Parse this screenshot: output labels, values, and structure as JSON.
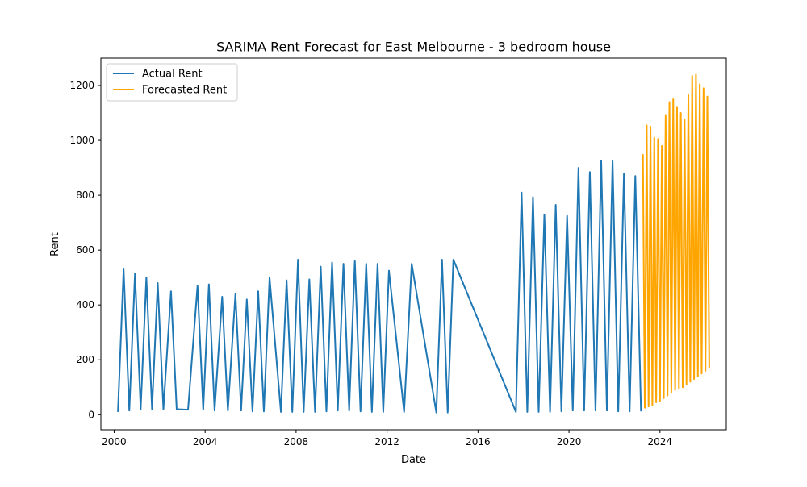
{
  "chart_data": {
    "type": "line",
    "title": "SARIMA Rent Forecast for East Melbourne - 3 bedroom house",
    "xlabel": "Date",
    "ylabel": "Rent",
    "xlim": [
      "1999-06",
      "2026-12"
    ],
    "ylim": [
      -55,
      1300
    ],
    "x_ticks": [
      "2000",
      "2004",
      "2008",
      "2012",
      "2016",
      "2020",
      "2024"
    ],
    "y_ticks": [
      0,
      200,
      400,
      600,
      800,
      1000,
      1200
    ],
    "grid": false,
    "legend": {
      "placement": "top-left",
      "entries": [
        "Actual Rent",
        "Forecasted Rent"
      ]
    },
    "colors": {
      "Actual Rent": "#1f77b4",
      "Forecasted Rent": "#ffa500"
    },
    "series": [
      {
        "name": "Actual Rent",
        "points": [
          [
            "2000-03",
            10
          ],
          [
            "2000-06",
            530
          ],
          [
            "2000-09",
            15
          ],
          [
            "2000-12",
            515
          ],
          [
            "2001-03",
            20
          ],
          [
            "2001-06",
            500
          ],
          [
            "2001-09",
            20
          ],
          [
            "2001-12",
            480
          ],
          [
            "2002-03",
            20
          ],
          [
            "2002-07",
            450
          ],
          [
            "2002-10",
            20
          ],
          [
            "2003-04",
            18
          ],
          [
            "2003-09",
            470
          ],
          [
            "2003-12",
            18
          ],
          [
            "2004-03",
            475
          ],
          [
            "2004-06",
            15
          ],
          [
            "2004-10",
            430
          ],
          [
            "2005-01",
            15
          ],
          [
            "2005-05",
            440
          ],
          [
            "2005-08",
            15
          ],
          [
            "2005-11",
            420
          ],
          [
            "2006-02",
            12
          ],
          [
            "2006-05",
            450
          ],
          [
            "2006-08",
            12
          ],
          [
            "2006-11",
            500
          ],
          [
            "2007-05",
            10
          ],
          [
            "2007-08",
            490
          ],
          [
            "2007-11",
            10
          ],
          [
            "2008-02",
            565
          ],
          [
            "2008-05",
            10
          ],
          [
            "2008-08",
            493
          ],
          [
            "2008-11",
            10
          ],
          [
            "2009-02",
            540
          ],
          [
            "2009-05",
            12
          ],
          [
            "2009-08",
            555
          ],
          [
            "2009-11",
            15
          ],
          [
            "2010-02",
            550
          ],
          [
            "2010-05",
            15
          ],
          [
            "2010-08",
            560
          ],
          [
            "2010-11",
            12
          ],
          [
            "2011-02",
            550
          ],
          [
            "2011-05",
            10
          ],
          [
            "2011-08",
            550
          ],
          [
            "2011-11",
            10
          ],
          [
            "2012-02",
            525
          ],
          [
            "2012-10",
            10
          ],
          [
            "2013-02",
            550
          ],
          [
            "2014-03",
            8
          ],
          [
            "2014-06",
            565
          ],
          [
            "2014-09",
            8
          ],
          [
            "2014-12",
            565
          ],
          [
            "2017-09",
            10
          ],
          [
            "2017-12",
            810
          ],
          [
            "2018-03",
            10
          ],
          [
            "2018-06",
            793
          ],
          [
            "2018-09",
            10
          ],
          [
            "2018-12",
            730
          ],
          [
            "2019-03",
            10
          ],
          [
            "2019-06",
            765
          ],
          [
            "2019-09",
            12
          ],
          [
            "2019-12",
            725
          ],
          [
            "2020-03",
            15
          ],
          [
            "2020-06",
            900
          ],
          [
            "2020-09",
            15
          ],
          [
            "2020-12",
            885
          ],
          [
            "2021-03",
            15
          ],
          [
            "2021-06",
            925
          ],
          [
            "2021-09",
            15
          ],
          [
            "2021-12",
            925
          ],
          [
            "2022-03",
            12
          ],
          [
            "2022-06",
            880
          ],
          [
            "2022-09",
            12
          ],
          [
            "2022-12",
            870
          ],
          [
            "2023-03",
            12
          ]
        ]
      },
      {
        "name": "Forecasted Rent",
        "points": [
          [
            "2023-04",
            950
          ],
          [
            "2023-05",
            25
          ],
          [
            "2023-06",
            1055
          ],
          [
            "2023-07",
            30
          ],
          [
            "2023-08",
            1050
          ],
          [
            "2023-09",
            35
          ],
          [
            "2023-10",
            1010
          ],
          [
            "2023-11",
            45
          ],
          [
            "2023-12",
            1005
          ],
          [
            "2024-01",
            50
          ],
          [
            "2024-02",
            980
          ],
          [
            "2024-03",
            60
          ],
          [
            "2024-04",
            1090
          ],
          [
            "2024-05",
            70
          ],
          [
            "2024-06",
            1140
          ],
          [
            "2024-07",
            80
          ],
          [
            "2024-08",
            1150
          ],
          [
            "2024-09",
            90
          ],
          [
            "2024-10",
            1120
          ],
          [
            "2024-11",
            95
          ],
          [
            "2024-12",
            1100
          ],
          [
            "2025-01",
            100
          ],
          [
            "2025-02",
            1075
          ],
          [
            "2025-03",
            110
          ],
          [
            "2025-04",
            1165
          ],
          [
            "2025-05",
            120
          ],
          [
            "2025-06",
            1235
          ],
          [
            "2025-07",
            130
          ],
          [
            "2025-08",
            1240
          ],
          [
            "2025-09",
            140
          ],
          [
            "2025-10",
            1205
          ],
          [
            "2025-11",
            150
          ],
          [
            "2025-12",
            1190
          ],
          [
            "2026-01",
            160
          ],
          [
            "2026-02",
            1160
          ],
          [
            "2026-03",
            170
          ]
        ]
      }
    ]
  }
}
